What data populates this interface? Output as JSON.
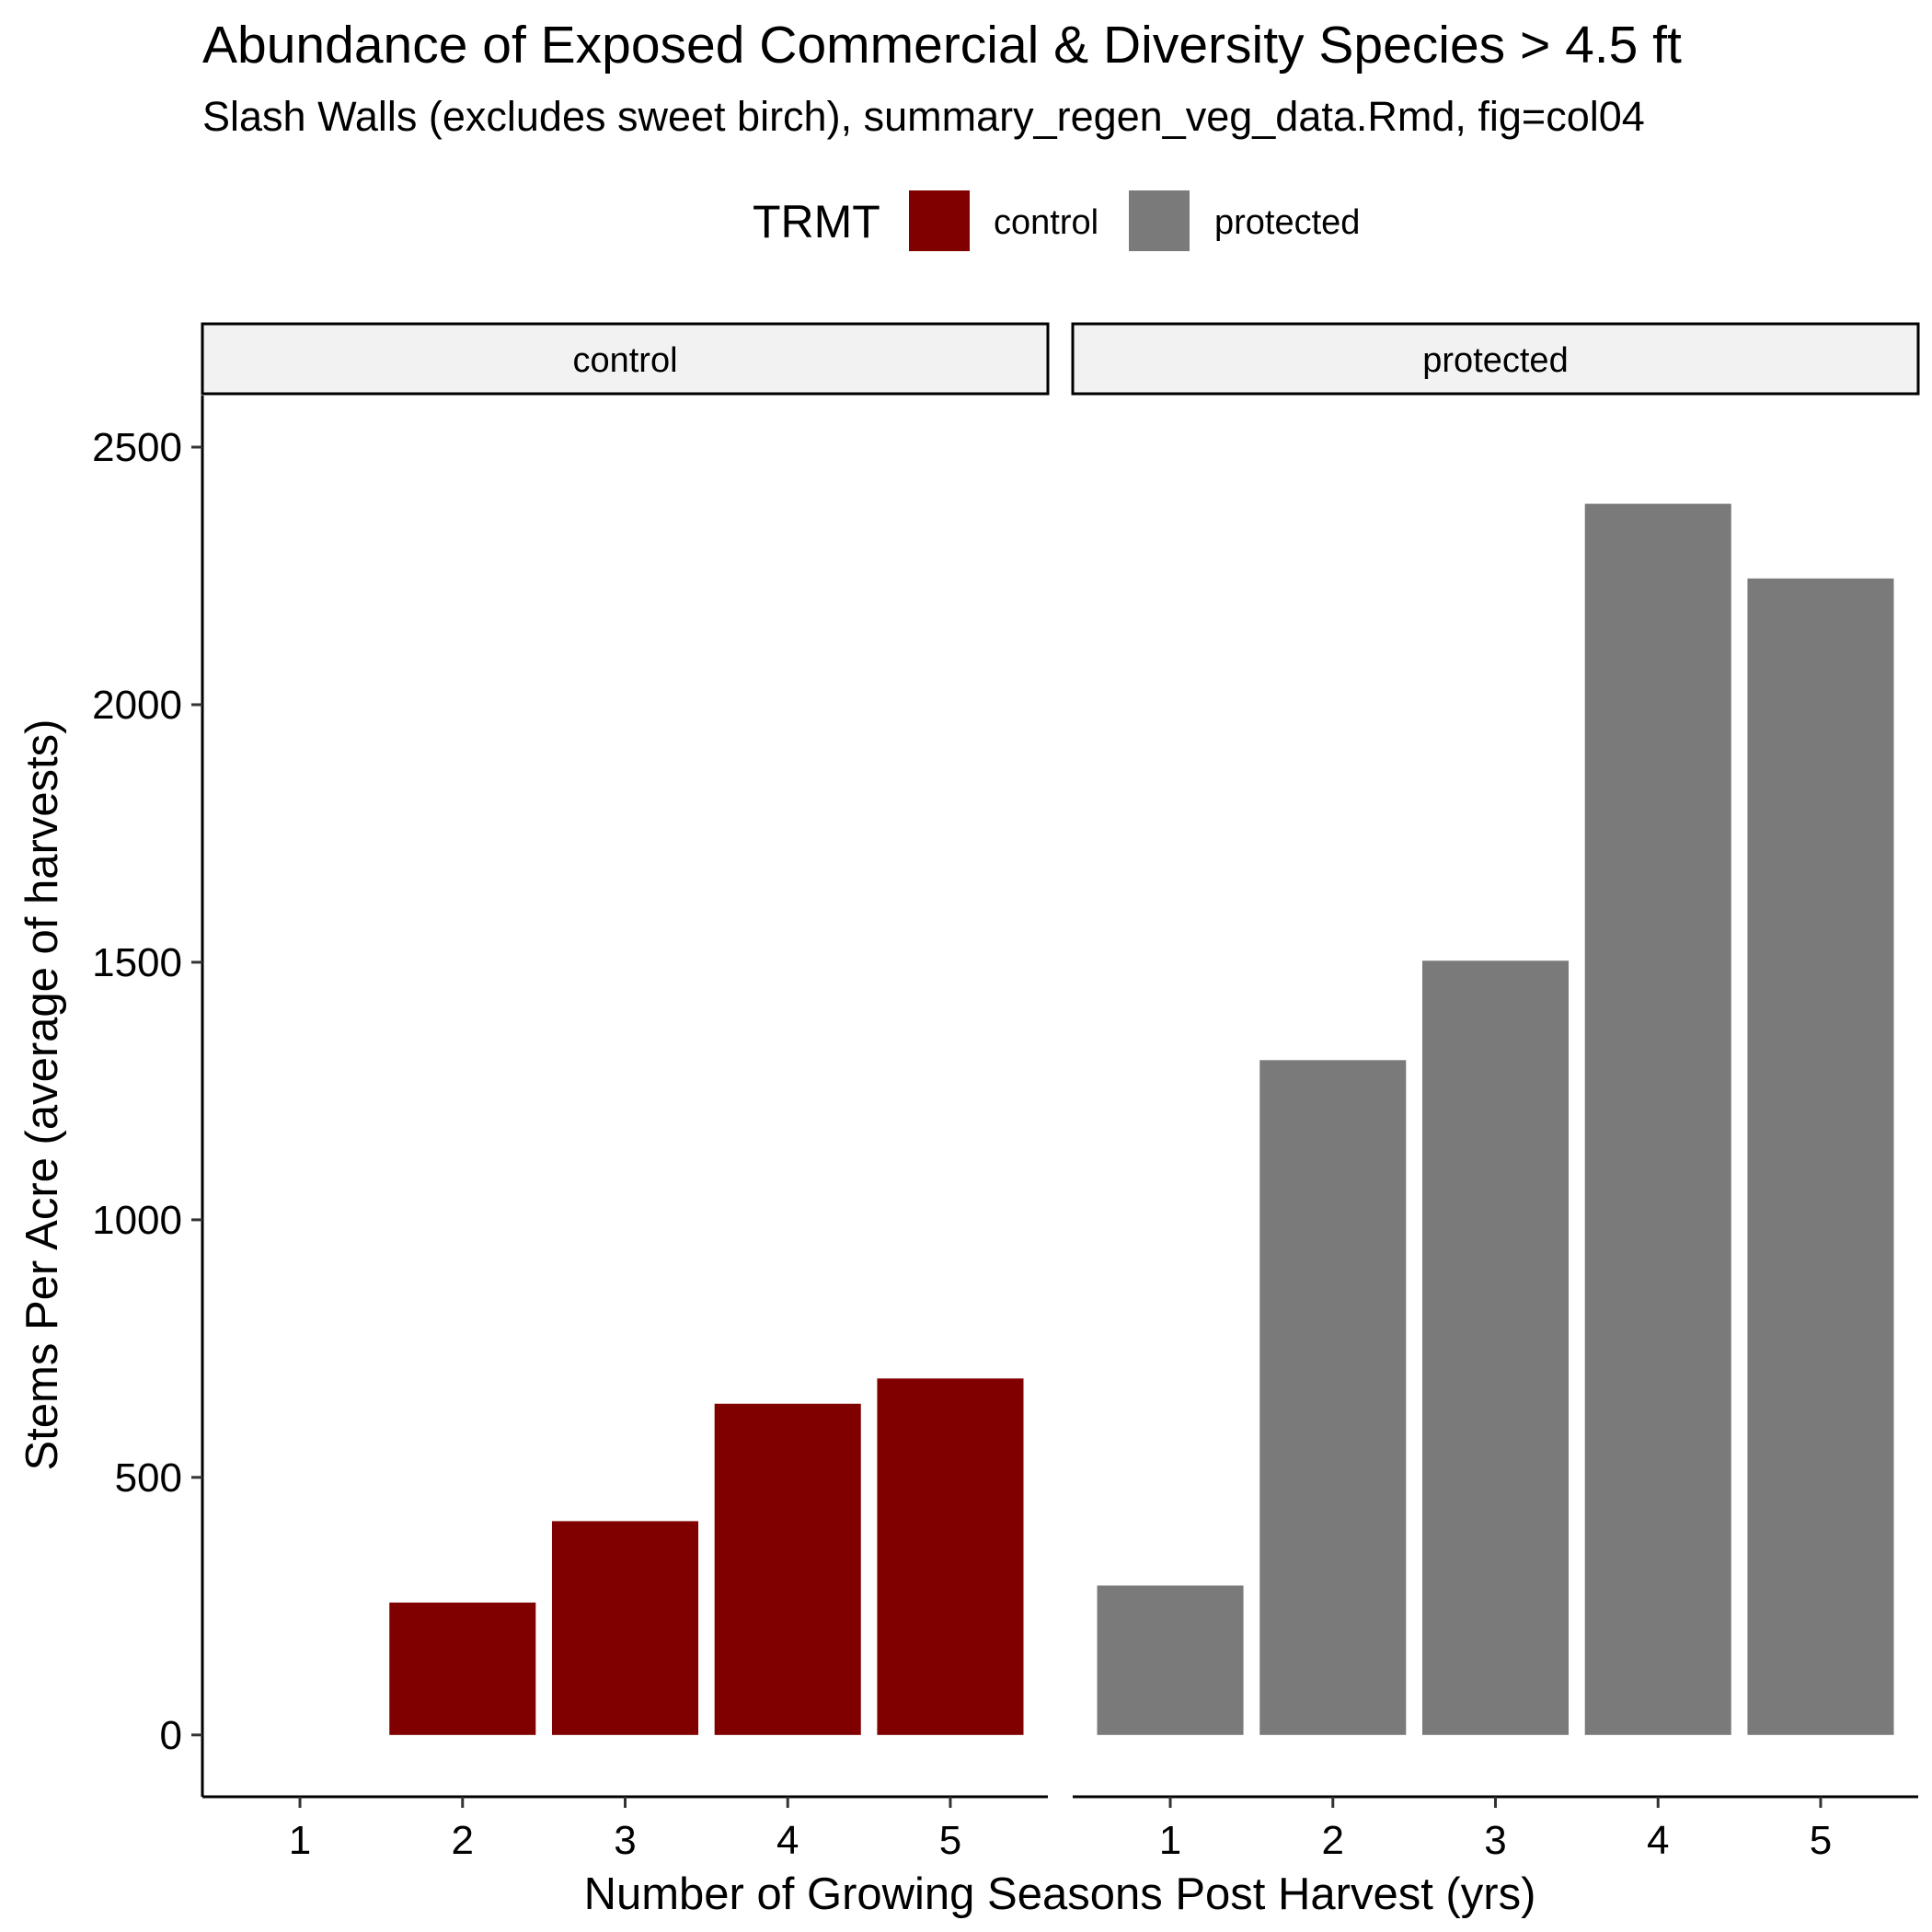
{
  "chart_data": {
    "type": "bar",
    "title": "Abundance of Exposed Commercial & Diversity Species > 4.5 ft",
    "subtitle": "Slash Walls (excludes sweet birch), summary_regen_veg_data.Rmd, fig=col04",
    "xlabel": "Number of Growing Seasons Post Harvest (yrs)",
    "ylabel": "Stems Per Acre (average of harvests)",
    "ylim": [
      -120,
      2600
    ],
    "yticks": [
      0,
      500,
      1000,
      1500,
      2000,
      2500
    ],
    "categories": [
      "1",
      "2",
      "3",
      "4",
      "5"
    ],
    "legend": {
      "title": "TRMT",
      "position": "top",
      "entries": [
        {
          "label": "control",
          "color": "#800000"
        },
        {
          "label": "protected",
          "color": "#7a7a7a"
        }
      ]
    },
    "facets": [
      {
        "name": "control",
        "color": "#800000",
        "values": [
          null,
          257,
          415,
          643,
          692
        ]
      },
      {
        "name": "protected",
        "color": "#7a7a7a",
        "values": [
          290,
          1310,
          1503,
          2390,
          2245
        ]
      }
    ],
    "grid": false
  }
}
